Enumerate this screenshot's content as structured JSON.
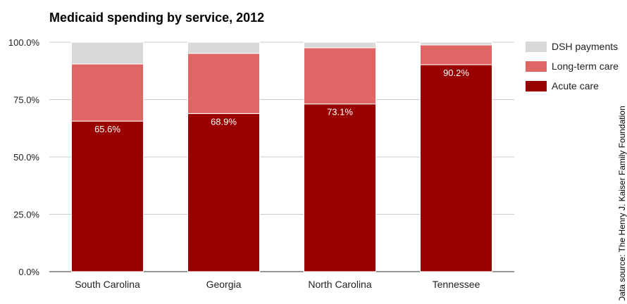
{
  "chart_data": {
    "type": "bar",
    "stacked": true,
    "title": "Medicaid spending by service, 2012",
    "xlabel": "",
    "ylabel": "",
    "ylim": [
      0,
      100
    ],
    "yticks": [
      "0.0%",
      "25.0%",
      "50.0%",
      "75.0%",
      "100.0%"
    ],
    "grid": true,
    "legend_position": "right",
    "categories": [
      "South Carolina",
      "Georgia",
      "North Carolina",
      "Tennessee"
    ],
    "series": [
      {
        "name": "Acute care",
        "color": "#990000",
        "values": [
          65.6,
          68.9,
          73.1,
          90.2
        ],
        "labels": [
          "65.6%",
          "68.9%",
          "73.1%",
          "90.2%"
        ]
      },
      {
        "name": "Long-term care",
        "color": "#e06666",
        "values": [
          24.9,
          26.2,
          24.5,
          8.6
        ]
      },
      {
        "name": "DSH payments",
        "color": "#d9d9d9",
        "values": [
          9.5,
          4.9,
          2.4,
          1.2
        ]
      }
    ],
    "source_note": "Data source: The Henry J. Kaiser Family Foundation"
  }
}
